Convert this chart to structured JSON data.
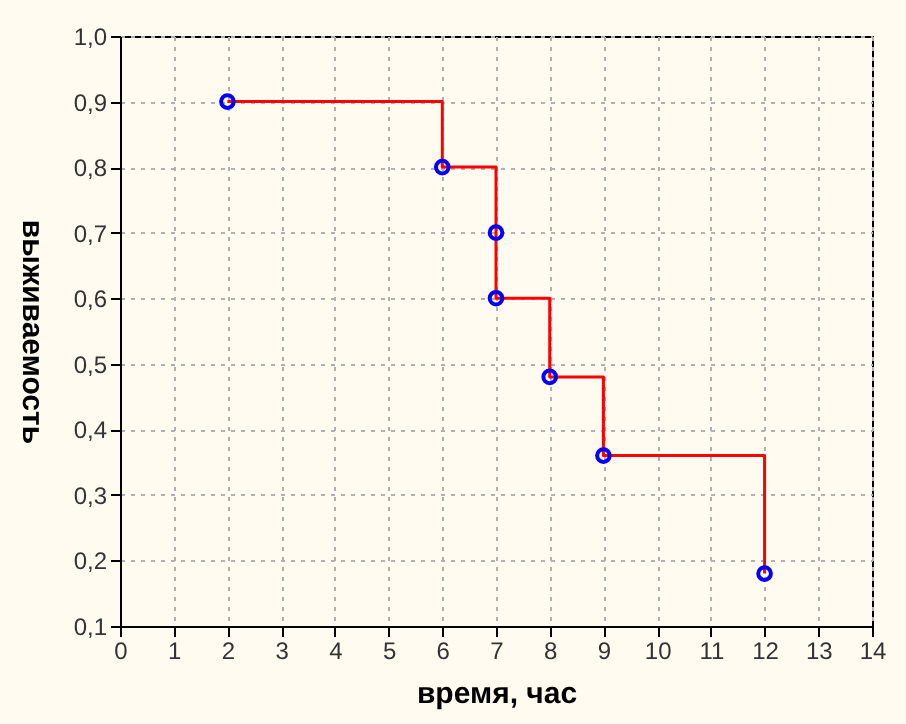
{
  "chart_data": {
    "type": "step",
    "xlabel": "время, час",
    "ylabel": "выживаемость",
    "x": [
      2,
      6,
      7,
      7,
      8,
      9,
      12
    ],
    "series": [
      {
        "color": "#ff0000",
        "values": [
          0.9,
          0.8,
          0.7,
          0.6,
          0.48,
          0.36,
          0.18
        ]
      },
      {
        "type": "scatter",
        "color": "#0000ff",
        "values": [
          0.9,
          0.8,
          0.7,
          0.6,
          0.48,
          0.36,
          0.18
        ]
      }
    ],
    "xlim": [
      0,
      14
    ],
    "xticks": [
      0,
      1,
      2,
      3,
      4,
      5,
      6,
      7,
      8,
      9,
      10,
      11,
      12,
      13,
      14
    ],
    "ylim": [
      0.1,
      1.0
    ],
    "yticks": [
      {
        "value": 0.1,
        "label": "0,1"
      },
      {
        "value": 0.2,
        "label": "0,2"
      },
      {
        "value": 0.3,
        "label": "0,3"
      },
      {
        "value": 0.4,
        "label": "0,4"
      },
      {
        "value": 0.5,
        "label": "0,5"
      },
      {
        "value": 0.6,
        "label": "0,6"
      },
      {
        "value": 0.7,
        "label": "0,7"
      },
      {
        "value": 0.8,
        "label": "0,8"
      },
      {
        "value": 0.9,
        "label": "0,9"
      },
      {
        "value": 1.0,
        "label": "1,0"
      }
    ],
    "grid": true
  }
}
